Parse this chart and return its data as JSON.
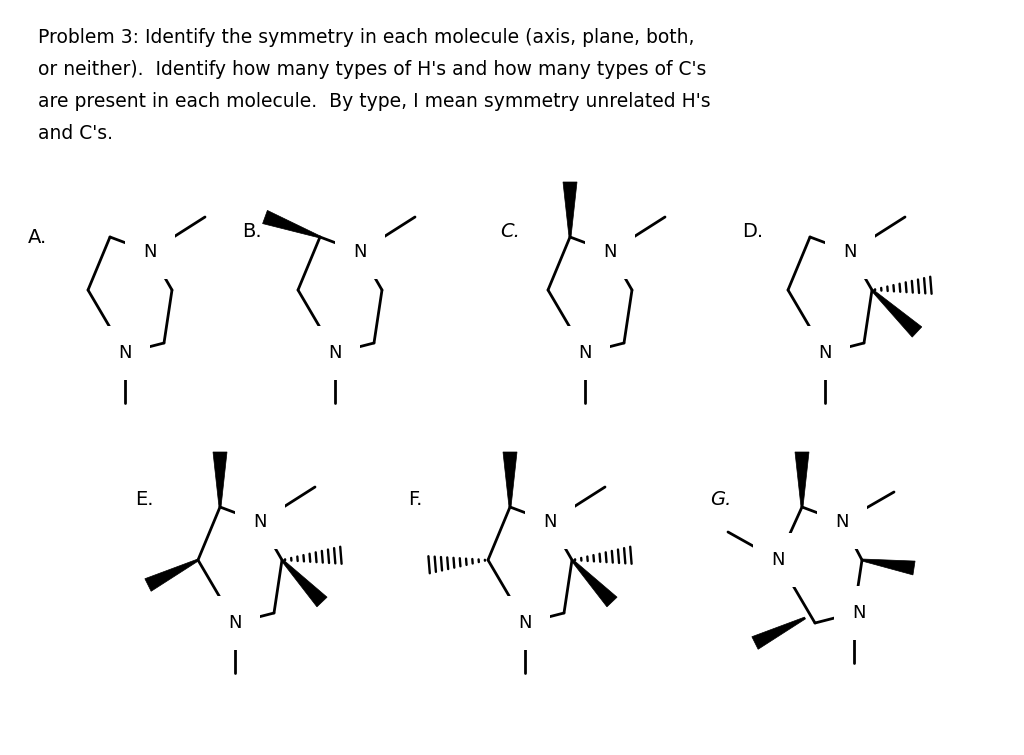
{
  "bg_color": "#ffffff",
  "lc": "#000000",
  "lw": 2.0,
  "fs_label": 14,
  "fs_N": 13,
  "title_lines": [
    "Problem 3: Identify the symmetry in each molecule (axis, plane, both,",
    "or neither).  Identify how many types of H's and how many types of C's",
    "are present in each molecule.  By type, I mean symmetry unrelated H's",
    "and C's."
  ],
  "title_fs": 13.5
}
